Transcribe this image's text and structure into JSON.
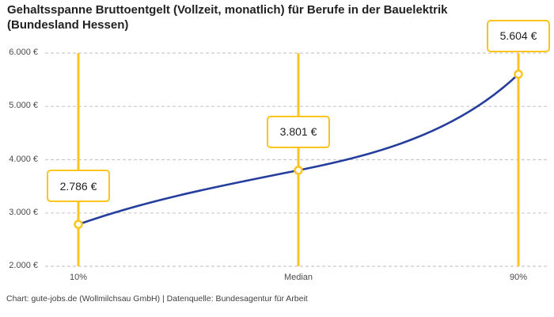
{
  "header": {
    "title": "Gehaltsspanne Bruttoentgelt (Vollzeit, monatlich) für Berufe in der Bauelektrik (Bundesland Hessen)"
  },
  "footer": {
    "credit": "Chart: gute-jobs.de (Wollmilchsau GmbH) | Datenquelle: Bundesagentur für Arbeit"
  },
  "chart_data": {
    "type": "line",
    "title": "Gehaltsspanne Bruttoentgelt (Vollzeit, monatlich) für Berufe in der Bauelektrik (Bundesland Hessen)",
    "x_categories": [
      "10%",
      "Median",
      "90%"
    ],
    "points": [
      {
        "label": "10%",
        "value": 2786,
        "formatted": "2.786 €"
      },
      {
        "label": "Median",
        "value": 3801,
        "formatted": "3.801 €"
      },
      {
        "label": "90%",
        "value": 5604,
        "formatted": "5.604 €"
      }
    ],
    "ylim": [
      2000,
      6000
    ],
    "y_ticks": [
      {
        "value": 6000,
        "label": "6.000 €"
      },
      {
        "value": 5000,
        "label": "5.000 €"
      },
      {
        "value": 4000,
        "label": "4.000 €"
      },
      {
        "value": 3000,
        "label": "3.000 €"
      },
      {
        "value": 2000,
        "label": "2.000 €"
      }
    ],
    "grid": "horizontal-dashed",
    "legend": "none",
    "colors": {
      "line": "#253e9e",
      "accent": "#fcc41c",
      "grid": "#cbcbcb",
      "marker_fill": "#ffffff",
      "title_text": "#222222",
      "axis_text": "#4b4b4b",
      "footer_text": "#3f3f3f"
    }
  }
}
